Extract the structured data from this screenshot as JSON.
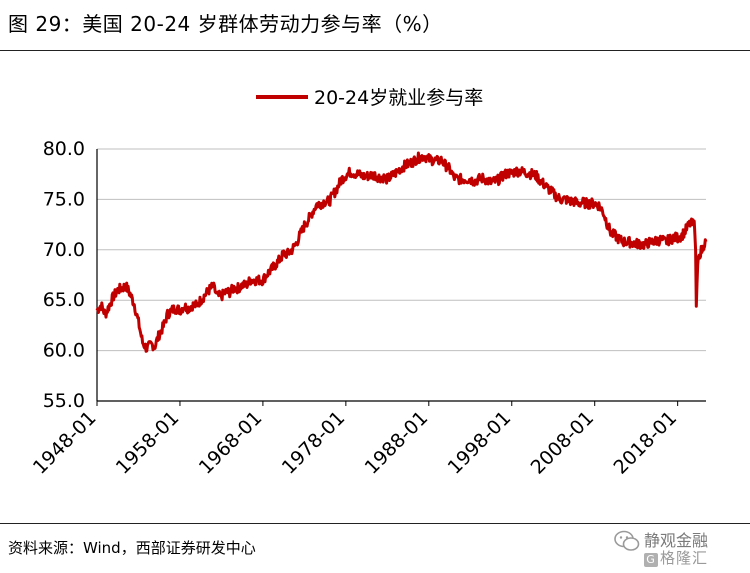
{
  "figure": {
    "title": "图 29：美国 20-24 岁群体劳动力参与率（%）",
    "source": "资料来源：Wind，西部证券研发中心"
  },
  "watermark": {
    "line1": "静观金融",
    "line2": "格隆汇",
    "badge": "G"
  },
  "chart_data": {
    "type": "line",
    "title": "",
    "legend": {
      "position": "top-center"
    },
    "xlabel": "",
    "ylabel": "",
    "xlim": [
      "1948-01",
      "2021-06"
    ],
    "ylim": [
      55,
      80
    ],
    "yticks": [
      55,
      60,
      65,
      70,
      75,
      80
    ],
    "ytick_labels": [
      "55.0",
      "60.0",
      "65.0",
      "70.0",
      "75.0",
      "80.0"
    ],
    "xticks": [
      "1948-01",
      "1958-01",
      "1968-01",
      "1978-01",
      "1988-01",
      "1998-01",
      "2008-01",
      "2018-01"
    ],
    "grid": {
      "horizontal": true,
      "vertical": false
    },
    "colors": {
      "series": "#C00000",
      "grid": "#BFBFBF",
      "axis": "#000000"
    },
    "series": [
      {
        "name": "20-24岁就业参与率",
        "points": [
          [
            "1948-01",
            64.0
          ],
          [
            "1948-07",
            64.5
          ],
          [
            "1949-01",
            63.6
          ],
          [
            "1949-07",
            64.5
          ],
          [
            "1950-01",
            65.4
          ],
          [
            "1950-07",
            66.0
          ],
          [
            "1951-01",
            66.2
          ],
          [
            "1951-07",
            66.4
          ],
          [
            "1952-01",
            65.6
          ],
          [
            "1952-07",
            64.6
          ],
          [
            "1953-01",
            62.8
          ],
          [
            "1953-07",
            60.8
          ],
          [
            "1954-01",
            60.2
          ],
          [
            "1954-07",
            60.6
          ],
          [
            "1955-01",
            60.5
          ],
          [
            "1955-07",
            61.6
          ],
          [
            "1956-01",
            62.4
          ],
          [
            "1956-07",
            63.6
          ],
          [
            "1957-01",
            64.0
          ],
          [
            "1957-07",
            64.2
          ],
          [
            "1958-01",
            64.0
          ],
          [
            "1958-07",
            64.4
          ],
          [
            "1959-01",
            64.2
          ],
          [
            "1959-07",
            64.5
          ],
          [
            "1960-01",
            64.5
          ],
          [
            "1960-07",
            65.0
          ],
          [
            "1961-01",
            65.5
          ],
          [
            "1961-07",
            66.0
          ],
          [
            "1962-01",
            66.4
          ],
          [
            "1962-07",
            65.4
          ],
          [
            "1963-01",
            65.4
          ],
          [
            "1963-07",
            65.8
          ],
          [
            "1964-01",
            65.8
          ],
          [
            "1964-07",
            66.2
          ],
          [
            "1965-01",
            66.2
          ],
          [
            "1965-07",
            66.5
          ],
          [
            "1966-01",
            66.5
          ],
          [
            "1966-07",
            67.0
          ],
          [
            "1967-01",
            67.0
          ],
          [
            "1967-07",
            67.0
          ],
          [
            "1968-01",
            67.0
          ],
          [
            "1968-07",
            67.6
          ],
          [
            "1969-01",
            68.0
          ],
          [
            "1969-07",
            68.5
          ],
          [
            "1970-01",
            69.0
          ],
          [
            "1970-07",
            69.6
          ],
          [
            "1971-01",
            69.6
          ],
          [
            "1971-07",
            70.0
          ],
          [
            "1972-01",
            70.6
          ],
          [
            "1972-07",
            71.5
          ],
          [
            "1973-01",
            72.4
          ],
          [
            "1973-07",
            73.0
          ],
          [
            "1974-01",
            73.8
          ],
          [
            "1974-07",
            74.5
          ],
          [
            "1975-01",
            74.6
          ],
          [
            "1975-07",
            74.8
          ],
          [
            "1976-01",
            74.8
          ],
          [
            "1976-07",
            75.5
          ],
          [
            "1977-01",
            76.2
          ],
          [
            "1977-07",
            77.0
          ],
          [
            "1978-01",
            77.4
          ],
          [
            "1978-07",
            77.7
          ],
          [
            "1979-01",
            77.6
          ],
          [
            "1979-07",
            77.5
          ],
          [
            "1980-01",
            77.3
          ],
          [
            "1980-07",
            77.3
          ],
          [
            "1981-01",
            77.4
          ],
          [
            "1981-07",
            77.4
          ],
          [
            "1982-01",
            77.2
          ],
          [
            "1982-07",
            77.2
          ],
          [
            "1983-01",
            77.0
          ],
          [
            "1983-07",
            77.3
          ],
          [
            "1984-01",
            77.6
          ],
          [
            "1984-07",
            78.0
          ],
          [
            "1985-01",
            78.3
          ],
          [
            "1985-07",
            78.5
          ],
          [
            "1986-01",
            78.7
          ],
          [
            "1986-07",
            79.0
          ],
          [
            "1987-01",
            79.2
          ],
          [
            "1987-07",
            79.3
          ],
          [
            "1988-01",
            79.0
          ],
          [
            "1988-07",
            78.9
          ],
          [
            "1989-01",
            78.8
          ],
          [
            "1989-07",
            78.9
          ],
          [
            "1990-01",
            78.4
          ],
          [
            "1990-07",
            78.0
          ],
          [
            "1991-01",
            77.2
          ],
          [
            "1991-07",
            77.0
          ],
          [
            "1992-01",
            77.0
          ],
          [
            "1992-07",
            77.0
          ],
          [
            "1993-01",
            77.0
          ],
          [
            "1993-07",
            76.8
          ],
          [
            "1994-01",
            77.0
          ],
          [
            "1994-07",
            77.1
          ],
          [
            "1995-01",
            76.9
          ],
          [
            "1995-07",
            76.7
          ],
          [
            "1996-01",
            76.8
          ],
          [
            "1996-07",
            77.0
          ],
          [
            "1997-01",
            77.4
          ],
          [
            "1997-07",
            77.6
          ],
          [
            "1998-01",
            77.6
          ],
          [
            "1998-07",
            77.8
          ],
          [
            "1999-01",
            77.8
          ],
          [
            "1999-07",
            77.7
          ],
          [
            "2000-01",
            77.6
          ],
          [
            "2000-07",
            77.5
          ],
          [
            "2001-01",
            77.3
          ],
          [
            "2001-07",
            76.8
          ],
          [
            "2002-01",
            76.4
          ],
          [
            "2002-07",
            76.0
          ],
          [
            "2003-01",
            75.6
          ],
          [
            "2003-07",
            75.2
          ],
          [
            "2004-01",
            75.0
          ],
          [
            "2004-07",
            75.0
          ],
          [
            "2005-01",
            74.8
          ],
          [
            "2005-07",
            74.8
          ],
          [
            "2006-01",
            74.6
          ],
          [
            "2006-07",
            74.7
          ],
          [
            "2007-01",
            74.6
          ],
          [
            "2007-07",
            74.6
          ],
          [
            "2008-01",
            74.6
          ],
          [
            "2008-07",
            74.4
          ],
          [
            "2009-01",
            73.8
          ],
          [
            "2009-07",
            72.6
          ],
          [
            "2010-01",
            71.6
          ],
          [
            "2010-07",
            71.4
          ],
          [
            "2011-01",
            71.0
          ],
          [
            "2011-07",
            70.8
          ],
          [
            "2012-01",
            70.8
          ],
          [
            "2012-07",
            70.7
          ],
          [
            "2013-01",
            70.6
          ],
          [
            "2013-07",
            70.6
          ],
          [
            "2014-01",
            70.5
          ],
          [
            "2014-07",
            70.7
          ],
          [
            "2015-01",
            70.8
          ],
          [
            "2015-07",
            70.9
          ],
          [
            "2016-01",
            71.0
          ],
          [
            "2016-07",
            70.8
          ],
          [
            "2017-01",
            71.0
          ],
          [
            "2017-07",
            71.2
          ],
          [
            "2018-01",
            71.2
          ],
          [
            "2018-07",
            71.4
          ],
          [
            "2019-01",
            72.0
          ],
          [
            "2019-07",
            72.6
          ],
          [
            "2020-01",
            72.5
          ],
          [
            "2020-02",
            71.5
          ],
          [
            "2020-03",
            70.0
          ],
          [
            "2020-04",
            64.4
          ],
          [
            "2020-05",
            66.6
          ],
          [
            "2020-06",
            68.5
          ],
          [
            "2020-07",
            69.3
          ],
          [
            "2020-10",
            69.8
          ],
          [
            "2021-01",
            70.1
          ],
          [
            "2021-03",
            70.6
          ],
          [
            "2021-06",
            70.8
          ]
        ]
      }
    ]
  }
}
